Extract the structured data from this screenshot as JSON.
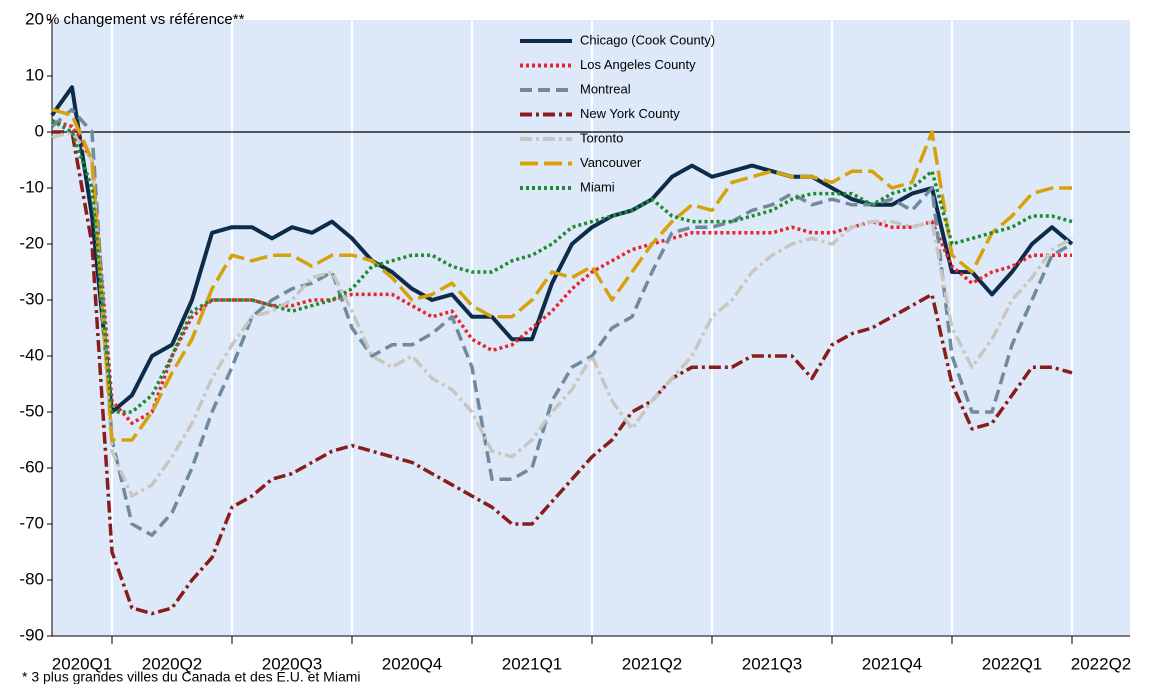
{
  "chart_data": {
    "type": "line",
    "y_label": "% changement vs référence**",
    "footnote": "* 3 plus grandes villes du Canada et des É.U. et Miami",
    "categories": [
      "2020Q1",
      null,
      null,
      "2020Q2",
      null,
      null,
      null,
      null,
      null,
      "2020Q3",
      null,
      null,
      null,
      null,
      null,
      "2020Q4",
      null,
      null,
      null,
      null,
      null,
      "2021Q1",
      null,
      null,
      null,
      null,
      null,
      "2021Q2",
      null,
      null,
      null,
      null,
      null,
      "2021Q3",
      null,
      null,
      null,
      null,
      null,
      "2021Q4",
      null,
      null,
      null,
      null,
      null,
      "2022Q1",
      null,
      null,
      null,
      null,
      null,
      "2022Q2"
    ],
    "ylim": [
      -90,
      20
    ],
    "yticks": [
      -90,
      -80,
      -70,
      -60,
      -50,
      -40,
      -30,
      -20,
      -10,
      0,
      10,
      20
    ],
    "legend": "top",
    "series": [
      {
        "name": "Chicago (Cook County)",
        "color": "#0d2c4a",
        "dash": "solid",
        "values": [
          3,
          8,
          -15,
          -50,
          -47,
          -40,
          -38,
          -30,
          -18,
          -17,
          -17,
          -19,
          -17,
          -18,
          -16,
          -19,
          -23,
          -25,
          -28,
          -30,
          -29,
          -33,
          -33,
          -37,
          -37,
          -27,
          -20,
          -17,
          -15,
          -14,
          -12,
          -8,
          -6,
          -8,
          -7,
          -6,
          -7,
          -8,
          -8,
          -10,
          -12,
          -13,
          -13,
          -11,
          -10,
          -25,
          -25,
          -29,
          -25,
          -20,
          -17,
          -20
        ]
      },
      {
        "name": "Los Angeles County",
        "color": "#e8252e",
        "dash": "dotted",
        "values": [
          2,
          1,
          -5,
          -48,
          -52,
          -50,
          -40,
          -33,
          -30,
          -30,
          -30,
          -31,
          -31,
          -30,
          -30,
          -29,
          -29,
          -29,
          -31,
          -33,
          -32,
          -37,
          -39,
          -38,
          -35,
          -32,
          -28,
          -25,
          -23,
          -21,
          -20,
          -19,
          -18,
          -18,
          -18,
          -18,
          -18,
          -17,
          -18,
          -18,
          -17,
          -16,
          -17,
          -17,
          -16,
          -24,
          -27,
          -25,
          -24,
          -22,
          -22,
          -22
        ]
      },
      {
        "name": "Montreal",
        "color": "#6f8a9c",
        "dash": "dashed",
        "values": [
          1,
          4,
          0,
          -55,
          -70,
          -72,
          -68,
          -60,
          -50,
          -42,
          -33,
          -30,
          -28,
          -27,
          -25,
          -35,
          -40,
          -38,
          -38,
          -36,
          -33,
          -42,
          -62,
          -62,
          -60,
          -48,
          -42,
          -40,
          -35,
          -33,
          -25,
          -18,
          -17,
          -17,
          -16,
          -14,
          -13,
          -11,
          -13,
          -12,
          -13,
          -13,
          -12,
          -14,
          -10,
          -40,
          -50,
          -50,
          -38,
          -30,
          -22,
          -20
        ]
      },
      {
        "name": "New York County",
        "color": "#8b1c1c",
        "dash": "dashdot",
        "values": [
          0,
          0,
          -20,
          -75,
          -85,
          -86,
          -85,
          -80,
          -76,
          -67,
          -65,
          -62,
          -61,
          -59,
          -57,
          -56,
          -57,
          -58,
          -59,
          -61,
          -63,
          -65,
          -67,
          -70,
          -70,
          -66,
          -62,
          -58,
          -55,
          -50,
          -48,
          -44,
          -42,
          -42,
          -42,
          -40,
          -40,
          -40,
          -44,
          -38,
          -36,
          -35,
          -33,
          -31,
          -29,
          -45,
          -53,
          -52,
          -47,
          -42,
          -42,
          -43
        ]
      },
      {
        "name": "Toronto",
        "color": "#c9c6c1",
        "dash": "dashdot",
        "values": [
          -1,
          0,
          -5,
          -57,
          -65,
          -63,
          -58,
          -52,
          -44,
          -38,
          -33,
          -32,
          -30,
          -26,
          -25,
          -32,
          -40,
          -42,
          -40,
          -44,
          -46,
          -50,
          -57,
          -58,
          -55,
          -50,
          -46,
          -40,
          -48,
          -53,
          -48,
          -44,
          -40,
          -33,
          -30,
          -25,
          -22,
          -20,
          -19,
          -20,
          -17,
          -16,
          -16,
          -17,
          -16,
          -35,
          -42,
          -37,
          -30,
          -26,
          -21,
          -19
        ]
      },
      {
        "name": "Vancouver",
        "color": "#d6a20c",
        "dash": "longdash",
        "values": [
          4,
          3,
          -5,
          -55,
          -55,
          -50,
          -43,
          -37,
          -28,
          -22,
          -23,
          -22,
          -22,
          -24,
          -22,
          -22,
          -23,
          -26,
          -30,
          -29,
          -27,
          -31,
          -33,
          -33,
          -30,
          -25,
          -26,
          -24,
          -30,
          -25,
          -20,
          -16,
          -13,
          -14,
          -9,
          -8,
          -7,
          -8,
          -8,
          -9,
          -7,
          -7,
          -10,
          -9,
          0,
          -22,
          -25,
          -18,
          -15,
          -11,
          -10,
          -10
        ]
      },
      {
        "name": "Miami",
        "color": "#1f8a30",
        "dash": "dotted",
        "values": [
          2,
          0,
          -10,
          -50,
          -50,
          -47,
          -40,
          -32,
          -30,
          -30,
          -30,
          -31,
          -32,
          -31,
          -30,
          -28,
          -24,
          -23,
          -22,
          -22,
          -24,
          -25,
          -25,
          -23,
          -22,
          -20,
          -17,
          -16,
          -15,
          -14,
          -12,
          -15,
          -16,
          -16,
          -16,
          -15,
          -14,
          -12,
          -11,
          -11,
          -11,
          -13,
          -11,
          -10,
          -7,
          -20,
          -19,
          -18,
          -17,
          -15,
          -15,
          -16
        ]
      }
    ]
  }
}
